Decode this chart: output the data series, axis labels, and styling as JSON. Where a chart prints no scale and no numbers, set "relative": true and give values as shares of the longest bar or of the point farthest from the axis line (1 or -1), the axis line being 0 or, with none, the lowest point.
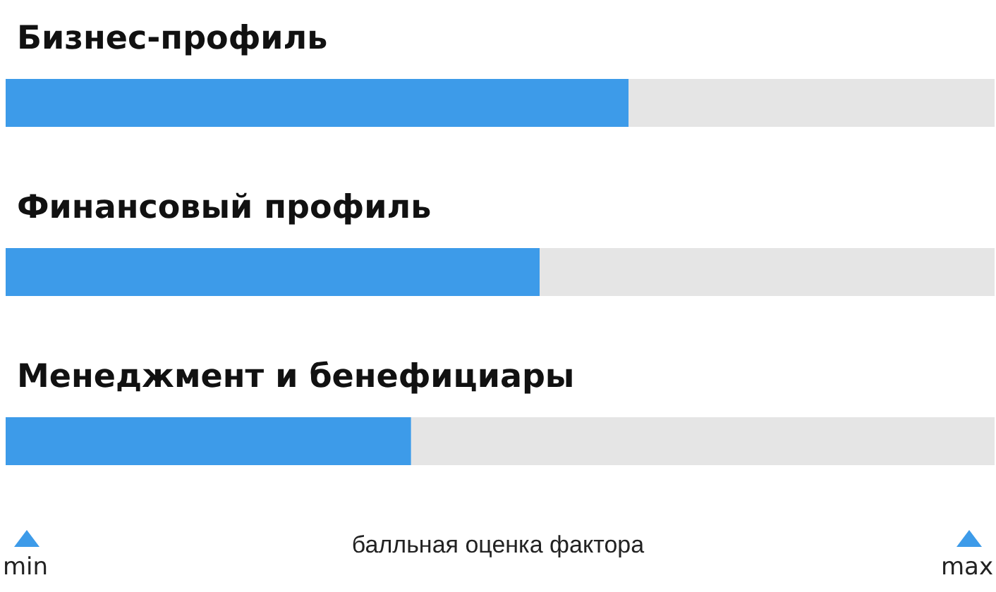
{
  "chart_data": {
    "type": "bar",
    "orientation": "horizontal",
    "relative": true,
    "stacked": true,
    "xlabel": "балльная оценка фактора",
    "categories": [
      "Бизнес-профиль",
      "Финансовый профиль",
      "Менеджмент и бенефициары"
    ],
    "series": [
      {
        "color": "#3d9be9",
        "values": [
          0.63,
          0.54,
          0.41
        ]
      },
      {
        "color": "#e5e5e5",
        "values": [
          0.37,
          0.46,
          0.59
        ]
      }
    ],
    "annotations": [
      "min",
      "max"
    ]
  }
}
